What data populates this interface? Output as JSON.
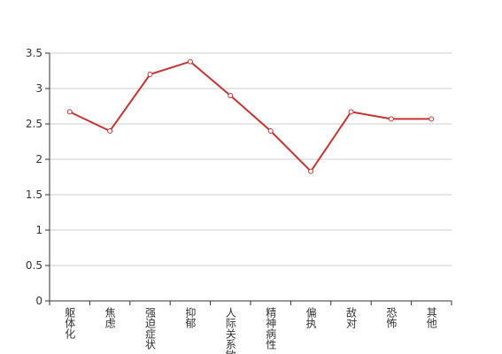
{
  "chart_data": {
    "type": "line",
    "categories": [
      "躯体化",
      "焦虑",
      "强迫症状",
      "抑郁",
      "人际关系敏感",
      "精神病性",
      "偏执",
      "敌对",
      "恐怖",
      "其他"
    ],
    "series": [
      {
        "color": "#c23531",
        "values": [
          2.67,
          2.4,
          3.2,
          3.38,
          2.9,
          2.4,
          1.83,
          2.67,
          2.57,
          2.57
        ]
      }
    ],
    "ylim": [
      0,
      3.5
    ],
    "yticks": [
      0,
      0.5,
      1,
      1.5,
      2,
      2.5,
      3,
      3.5
    ],
    "grid": true
  }
}
